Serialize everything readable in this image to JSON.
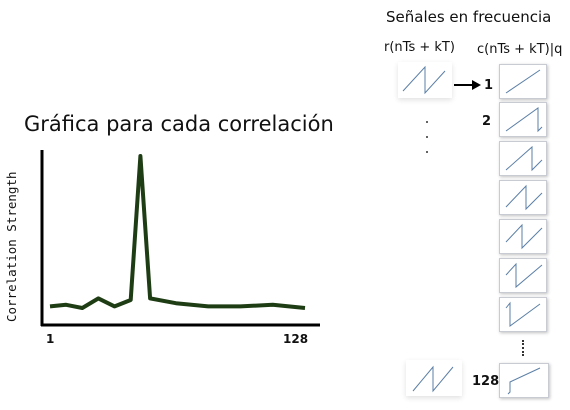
{
  "freq_panel": {
    "title": "Señales en frecuencia",
    "col_r": "r(nTs + kT)",
    "col_c": "c(nTs + kT)|q",
    "index_first": "1",
    "index_second": "2",
    "index_last": "128"
  },
  "chart_data": {
    "type": "line",
    "title": "Gráfica para cada correlación",
    "ylabel": "Correlation Strength",
    "x_tick_labels": [
      "1",
      "128"
    ],
    "grid": false,
    "series": [
      {
        "color": "#1f3d14",
        "points": [
          [
            1,
            0.06
          ],
          [
            6,
            0.07
          ],
          [
            11,
            0.05
          ],
          [
            16,
            0.11
          ],
          [
            21,
            0.06
          ],
          [
            26,
            0.1
          ],
          [
            29,
            1.0
          ],
          [
            32,
            0.11
          ],
          [
            40,
            0.08
          ],
          [
            50,
            0.06
          ],
          [
            60,
            0.06
          ],
          [
            70,
            0.07
          ],
          [
            80,
            0.05
          ]
        ]
      }
    ]
  }
}
